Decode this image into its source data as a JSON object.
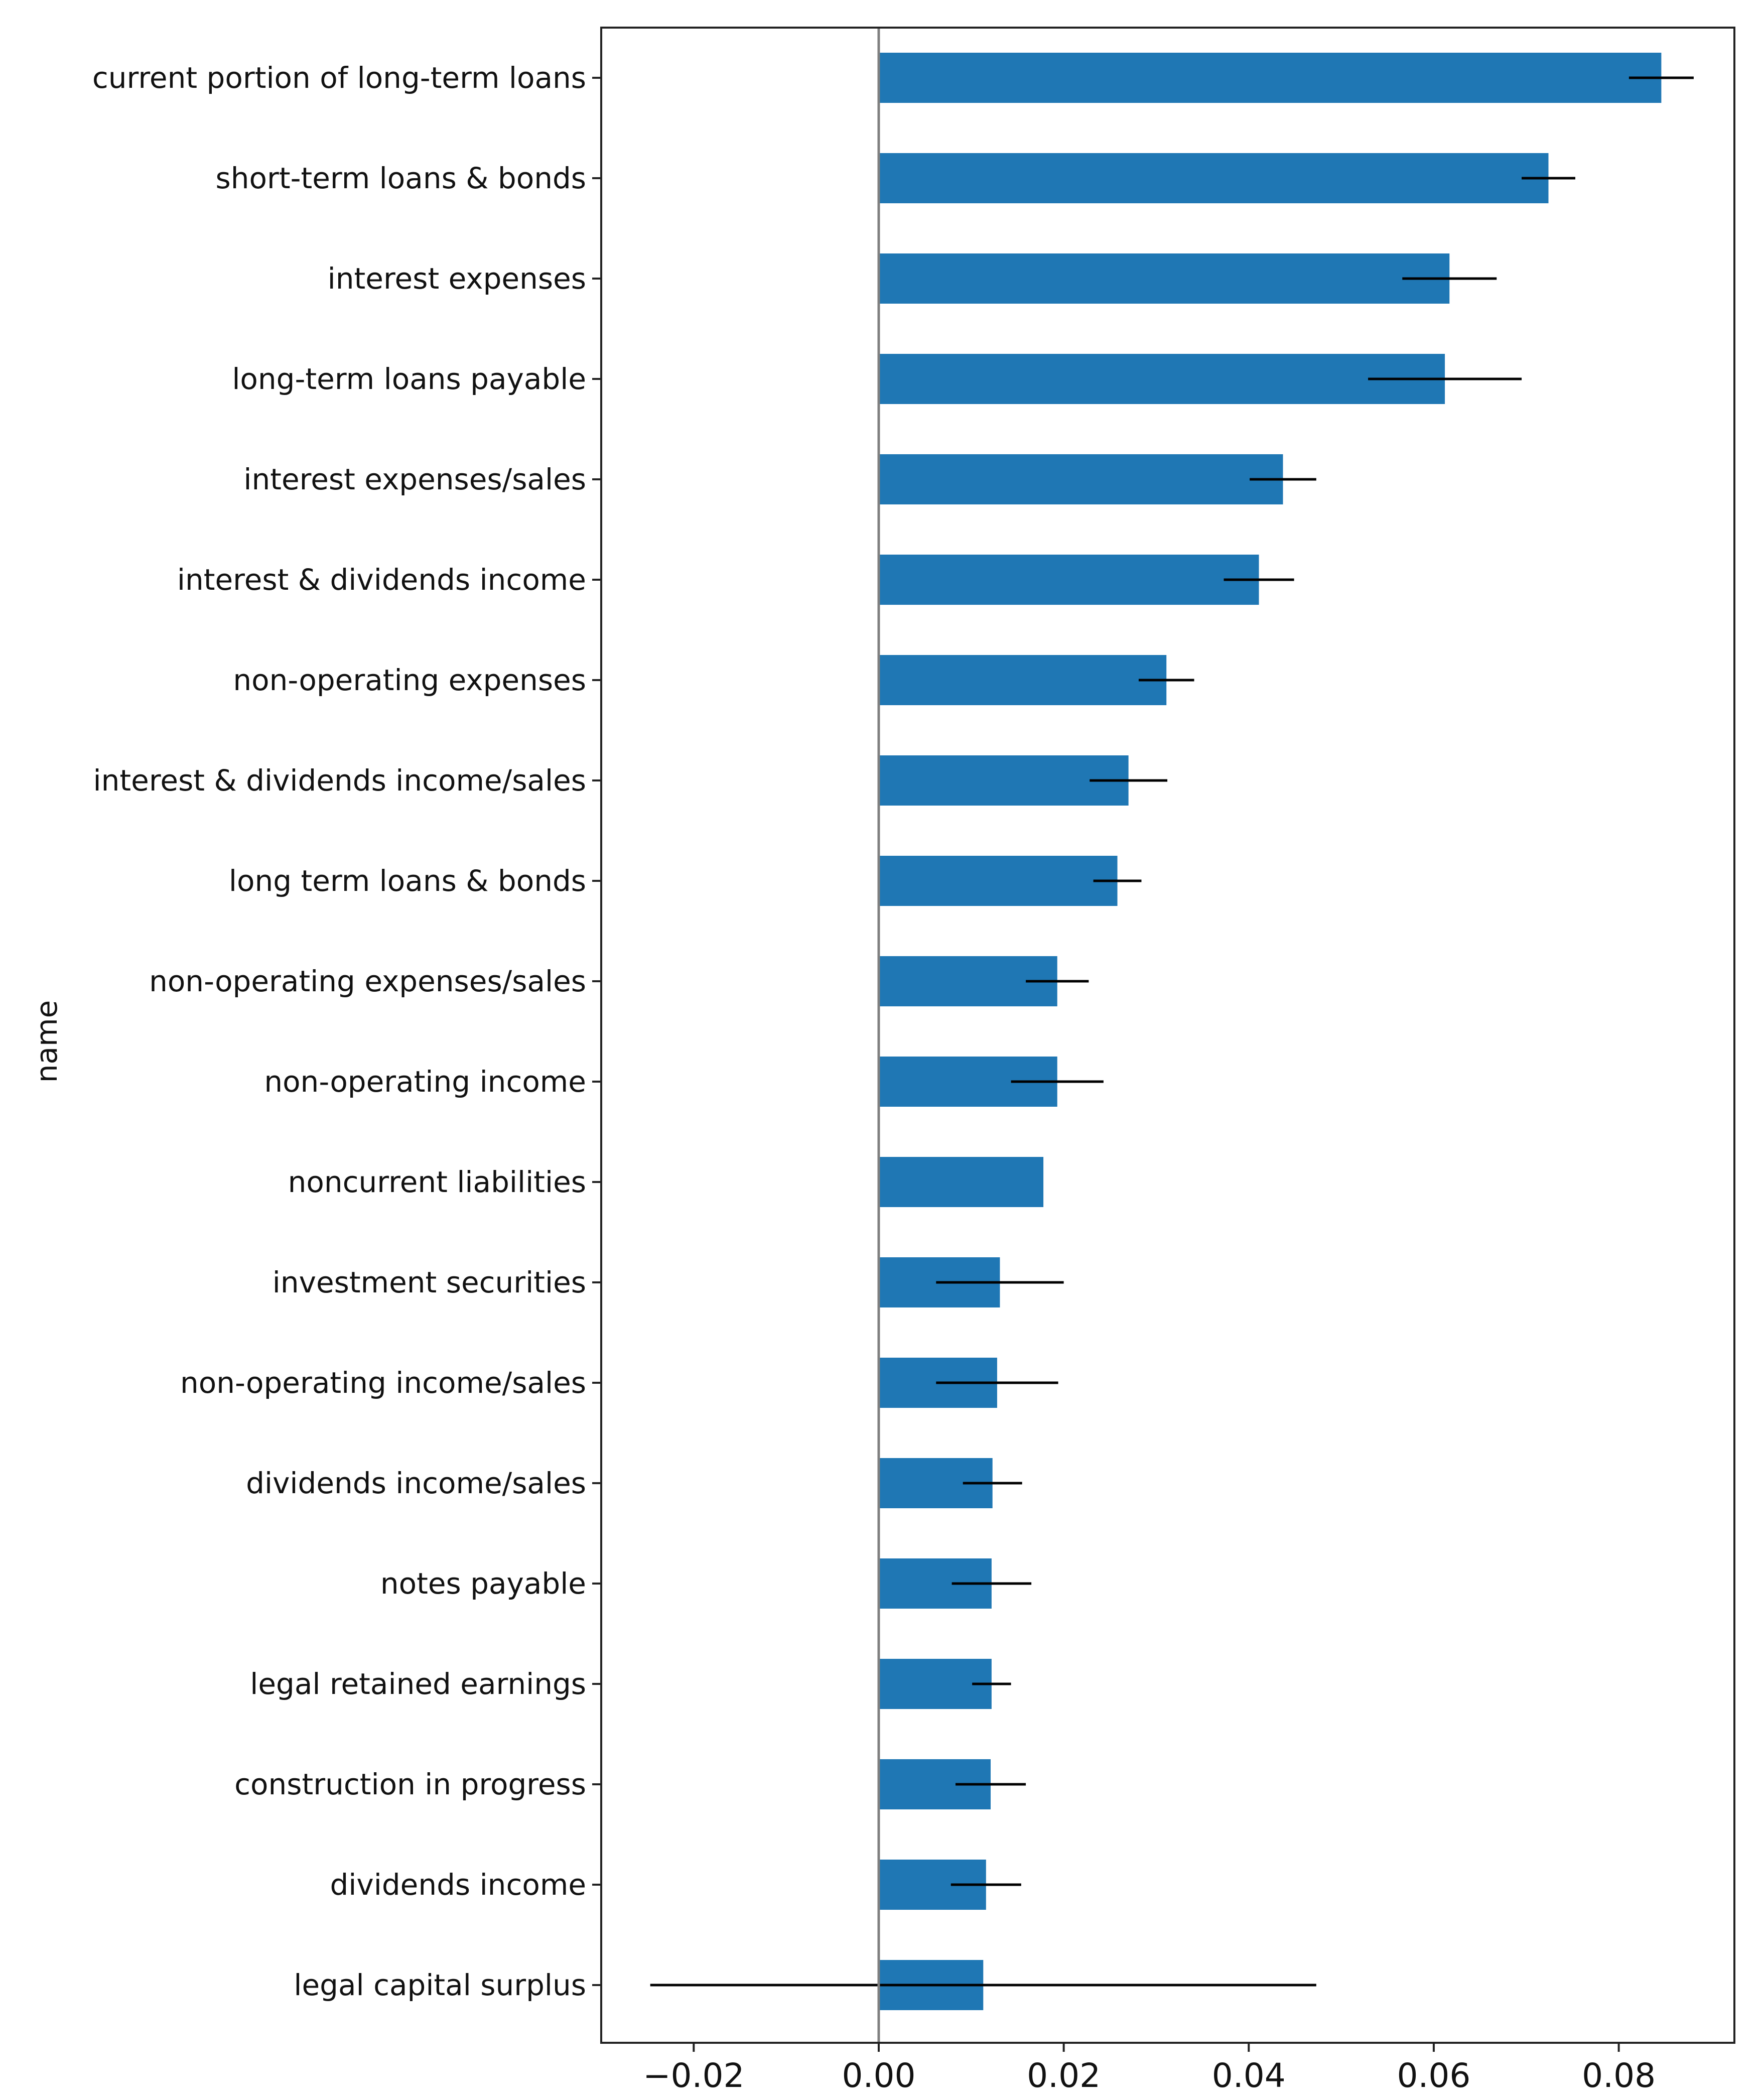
{
  "chart_data": {
    "type": "bar",
    "orientation": "horizontal",
    "title": "",
    "xlabel": "",
    "ylabel": "name",
    "xlim": [
      -0.03,
      0.0925
    ],
    "xticks": [
      -0.02,
      0.0,
      0.02,
      0.04,
      0.06,
      0.08
    ],
    "xtick_labels": [
      "−0.02",
      "0.00",
      "0.02",
      "0.04",
      "0.06",
      "0.08"
    ],
    "grid": false,
    "zero_line": true,
    "bar_color": "#1f77b4",
    "error_color": "#000000",
    "categories": [
      "current portion of long-term loans",
      "short-term loans & bonds",
      "interest expenses",
      "long-term loans payable",
      "interest expenses/sales",
      "interest & dividends income",
      "non-operating expenses",
      "interest & dividends income/sales",
      "long term loans & bonds",
      "non-operating expenses/sales",
      "non-operating income",
      "noncurrent liabilities",
      "investment securities",
      "non-operating income/sales",
      "dividends income/sales",
      "notes payable",
      "legal retained earnings",
      "construction in progress",
      "dividends income",
      "legal capital surplus"
    ],
    "values": [
      0.0846,
      0.0724,
      0.0617,
      0.0612,
      0.0437,
      0.0411,
      0.0311,
      0.027,
      0.0258,
      0.0193,
      0.0193,
      0.0178,
      0.0131,
      0.0128,
      0.0123,
      0.0122,
      0.0122,
      0.0121,
      0.0116,
      0.0113
    ],
    "errors": [
      0.0035,
      0.0029,
      0.0051,
      0.0083,
      0.0036,
      0.0038,
      0.003,
      0.0042,
      0.0026,
      0.0034,
      0.005,
      0.0,
      0.0069,
      0.0066,
      0.0032,
      0.0043,
      0.0021,
      0.0038,
      0.0038,
      0.036
    ]
  }
}
